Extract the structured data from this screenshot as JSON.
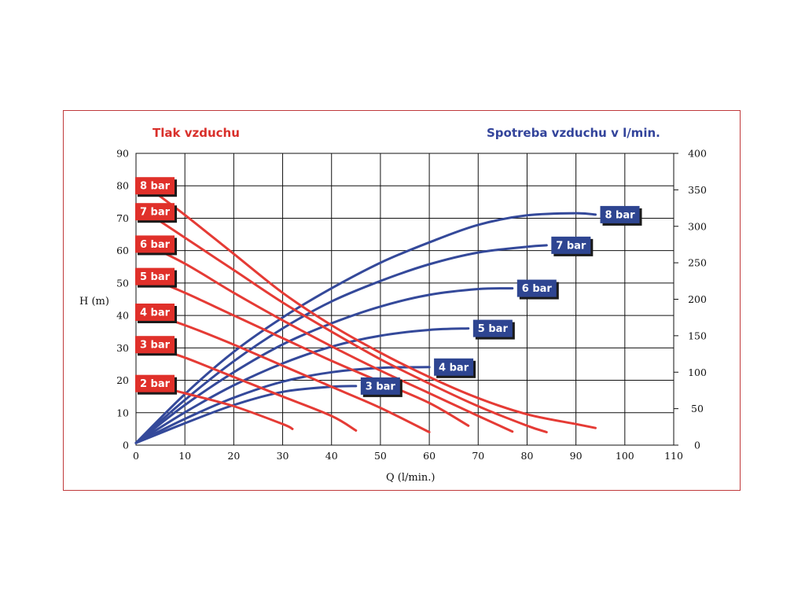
{
  "chart_data": {
    "type": "line",
    "title_left": "Tlak vzduchu",
    "title_right": "Spotreba vzduchu v l/min.",
    "xlabel": "Q (l/min.)",
    "ylabel": "H (m)",
    "x_ticks": [
      "0",
      "10",
      "20",
      "30",
      "40",
      "50",
      "60",
      "70",
      "80",
      "90",
      "100",
      "110"
    ],
    "y_ticks": [
      "0",
      "10",
      "20",
      "30",
      "40",
      "50",
      "60",
      "70",
      "80",
      "90"
    ],
    "y2_ticks": [
      "0",
      "50",
      "100",
      "150",
      "200",
      "250",
      "300",
      "350",
      "400"
    ],
    "xlim": [
      0,
      110
    ],
    "ylim": [
      0,
      90
    ],
    "y2lim": [
      0,
      400
    ],
    "grid": true,
    "colors": {
      "pressure": "#e53b35",
      "air": "#34499a",
      "badge_red": "#e0302a",
      "badge_blue": "#2e4591",
      "title_red": "#d9302b",
      "title_blue": "#33449b"
    },
    "pressure_series": [
      {
        "name": "8 bar",
        "points": [
          [
            2,
            80
          ],
          [
            10,
            71
          ],
          [
            20,
            59
          ],
          [
            30,
            47
          ],
          [
            40,
            37
          ],
          [
            50,
            28.5
          ],
          [
            60,
            21
          ],
          [
            70,
            14.5
          ],
          [
            80,
            9.5
          ],
          [
            90,
            6.5
          ],
          [
            94,
            5.3
          ]
        ]
      },
      {
        "name": "7 bar",
        "points": [
          [
            2,
            72
          ],
          [
            10,
            64
          ],
          [
            20,
            54
          ],
          [
            30,
            44
          ],
          [
            40,
            35
          ],
          [
            50,
            26.5
          ],
          [
            60,
            19
          ],
          [
            70,
            12
          ],
          [
            80,
            6
          ],
          [
            84,
            4
          ]
        ]
      },
      {
        "name": "6 bar",
        "points": [
          [
            2,
            62
          ],
          [
            10,
            56
          ],
          [
            20,
            47
          ],
          [
            30,
            38.5
          ],
          [
            40,
            30.5
          ],
          [
            50,
            23
          ],
          [
            60,
            16
          ],
          [
            70,
            9
          ],
          [
            77,
            4.2
          ]
        ]
      },
      {
        "name": "5 bar",
        "points": [
          [
            2,
            52
          ],
          [
            10,
            47
          ],
          [
            20,
            40
          ],
          [
            30,
            33
          ],
          [
            40,
            26
          ],
          [
            50,
            19.5
          ],
          [
            60,
            13
          ],
          [
            68,
            6
          ]
        ]
      },
      {
        "name": "4 bar",
        "points": [
          [
            2,
            41
          ],
          [
            10,
            37
          ],
          [
            20,
            31
          ],
          [
            30,
            24.5
          ],
          [
            40,
            18
          ],
          [
            50,
            11.5
          ],
          [
            60,
            4
          ]
        ]
      },
      {
        "name": "3 bar",
        "points": [
          [
            2,
            31
          ],
          [
            10,
            27
          ],
          [
            20,
            21
          ],
          [
            30,
            15
          ],
          [
            40,
            9
          ],
          [
            45,
            4.5
          ]
        ]
      },
      {
        "name": "2 bar",
        "points": [
          [
            2,
            19
          ],
          [
            10,
            16
          ],
          [
            20,
            12
          ],
          [
            30,
            6.5
          ],
          [
            32,
            5
          ]
        ]
      }
    ],
    "air_series": [
      {
        "name": "8 bar",
        "points": [
          [
            0,
            3
          ],
          [
            10,
            70
          ],
          [
            20,
            128
          ],
          [
            30,
            175
          ],
          [
            40,
            215
          ],
          [
            50,
            250
          ],
          [
            60,
            278
          ],
          [
            70,
            302
          ],
          [
            80,
            315
          ],
          [
            90,
            318
          ],
          [
            94,
            316
          ]
        ]
      },
      {
        "name": "7 bar",
        "points": [
          [
            0,
            3
          ],
          [
            10,
            62
          ],
          [
            20,
            115
          ],
          [
            30,
            160
          ],
          [
            40,
            197
          ],
          [
            50,
            225
          ],
          [
            60,
            248
          ],
          [
            70,
            264
          ],
          [
            80,
            272
          ],
          [
            84,
            274
          ]
        ]
      },
      {
        "name": "6 bar",
        "points": [
          [
            0,
            3
          ],
          [
            10,
            55
          ],
          [
            20,
            100
          ],
          [
            30,
            138
          ],
          [
            40,
            167
          ],
          [
            50,
            190
          ],
          [
            60,
            206
          ],
          [
            70,
            214
          ],
          [
            77,
            215
          ]
        ]
      },
      {
        "name": "5 bar",
        "points": [
          [
            0,
            3
          ],
          [
            10,
            45
          ],
          [
            20,
            82
          ],
          [
            30,
            112
          ],
          [
            40,
            135
          ],
          [
            50,
            150
          ],
          [
            60,
            158
          ],
          [
            68,
            160
          ]
        ]
      },
      {
        "name": "4 bar",
        "points": [
          [
            0,
            3
          ],
          [
            10,
            36
          ],
          [
            20,
            65
          ],
          [
            30,
            87
          ],
          [
            40,
            100
          ],
          [
            50,
            106
          ],
          [
            60,
            107
          ]
        ]
      },
      {
        "name": "3 bar",
        "points": [
          [
            0,
            3
          ],
          [
            10,
            30
          ],
          [
            20,
            55
          ],
          [
            30,
            73
          ],
          [
            40,
            80
          ],
          [
            45,
            81
          ]
        ]
      }
    ],
    "pressure_labels": [
      "8 bar",
      "7 bar",
      "6 bar",
      "5 bar",
      "4 bar",
      "3 bar",
      "2 bar"
    ],
    "air_labels": [
      "8 bar",
      "7 bar",
      "6 bar",
      "5 bar",
      "4 bar",
      "3 bar"
    ]
  }
}
